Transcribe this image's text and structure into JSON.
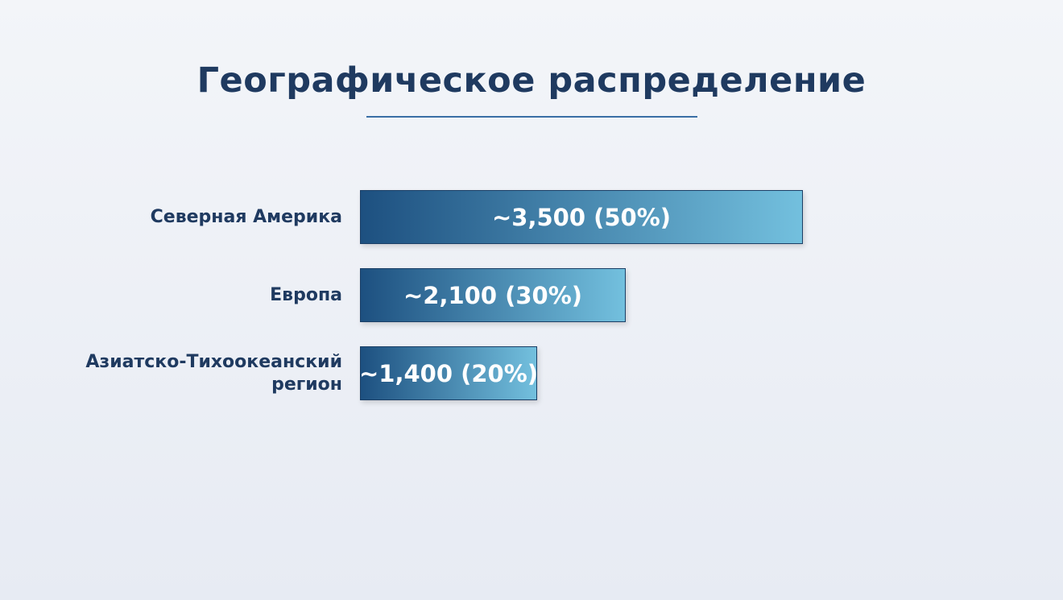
{
  "chart_data": {
    "type": "bar",
    "orientation": "horizontal",
    "title": "Географическое распределение",
    "categories": [
      "Северная Америка",
      "Европа",
      "Азиатско-Тихоокеанский регион"
    ],
    "values": [
      3500,
      2100,
      1400
    ],
    "value_labels": [
      "~3,500 (50%)",
      "~2,100 (30%)",
      "~1,400 (20%)"
    ],
    "gradient": [
      "#1d5080",
      "#73c0de"
    ]
  }
}
